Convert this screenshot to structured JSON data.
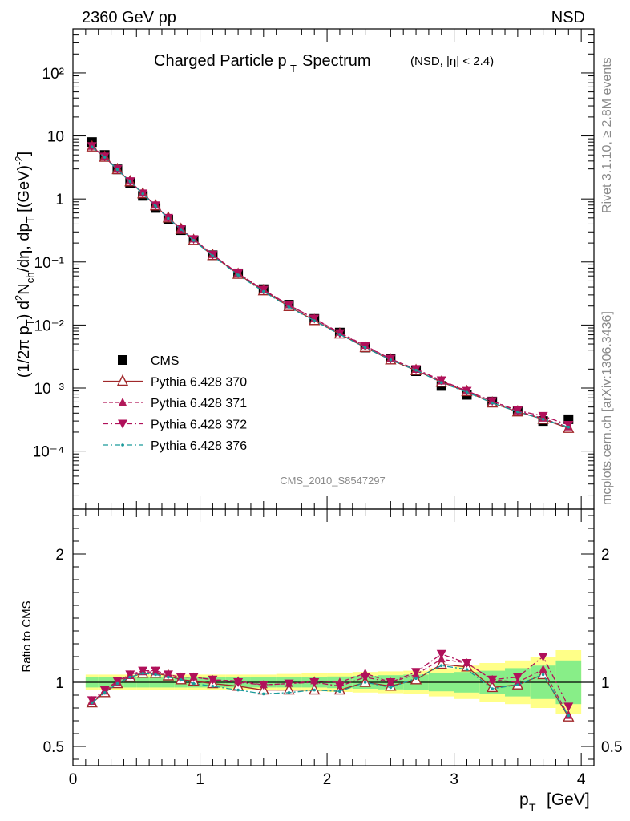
{
  "header": {
    "energy": "2360 GeV pp",
    "process": "NSD"
  },
  "side_text": {
    "rivet": "Rivet 3.1.10, ≥ 2.8M events",
    "source": "mcplots.cern.ch [arXiv:1306.3436]"
  },
  "analysis_id": "CMS_2010_S8547297",
  "chart_data": [
    {
      "type": "scatter",
      "panel": "main",
      "title": "Charged Particle p_T Spectrum (NSD, |η| < 2.4)",
      "xlabel": "p_T [GeV]",
      "ylabel": "(1/2π p_T) d²N_ch/dη, dp_T [(GeV)⁻²]",
      "yscale": "log",
      "xlim": [
        0,
        4.1
      ],
      "ylim": [
        1.2e-05,
        500
      ],
      "y_tick_labels": [
        "10⁻⁴",
        "10⁻³",
        "10⁻²",
        "10⁻¹",
        "1",
        "10",
        "10²"
      ],
      "legend_position": "lower-left",
      "x": [
        0.15,
        0.25,
        0.35,
        0.45,
        0.55,
        0.65,
        0.75,
        0.85,
        0.95,
        1.1,
        1.3,
        1.5,
        1.7,
        1.9,
        2.1,
        2.3,
        2.5,
        2.7,
        2.9,
        3.1,
        3.3,
        3.5,
        3.7,
        3.9
      ],
      "series": [
        {
          "name": "CMS",
          "color": "#000000",
          "marker": "square",
          "values": [
            8.0,
            5.0,
            2.95,
            1.8,
            1.12,
            0.72,
            0.47,
            0.32,
            0.22,
            0.128,
            0.066,
            0.037,
            0.021,
            0.0125,
            0.0076,
            0.0044,
            0.0029,
            0.00185,
            0.00108,
            0.00078,
            0.00061,
            0.00043,
            0.0003,
            0.00032
          ]
        },
        {
          "name": "Pythia 6.428 370",
          "color": "#a0282a",
          "marker": "open-triangle-up",
          "line": "solid",
          "values": [
            6.7,
            4.6,
            2.93,
            1.88,
            1.21,
            0.78,
            0.5,
            0.33,
            0.22,
            0.127,
            0.064,
            0.035,
            0.0197,
            0.0118,
            0.0072,
            0.0044,
            0.0028,
            0.0019,
            0.00124,
            0.00088,
            0.00058,
            0.00042,
            0.00032,
            0.00023
          ]
        },
        {
          "name": "Pythia 6.428 371",
          "color": "#b21a5a",
          "marker": "triangle-up",
          "line": "dashed",
          "values": [
            6.8,
            4.6,
            2.95,
            1.9,
            1.22,
            0.79,
            0.5,
            0.33,
            0.23,
            0.13,
            0.066,
            0.036,
            0.0207,
            0.0126,
            0.0076,
            0.0047,
            0.0029,
            0.00196,
            0.00128,
            0.0009,
            0.00062,
            0.00043,
            0.00033,
            0.00024
          ]
        },
        {
          "name": "Pythia 6.428 372",
          "color": "#b0105a",
          "marker": "triangle-down",
          "line": "dashdot",
          "values": [
            6.9,
            4.7,
            2.97,
            1.91,
            1.22,
            0.79,
            0.5,
            0.33,
            0.23,
            0.13,
            0.066,
            0.036,
            0.0208,
            0.0126,
            0.0074,
            0.0046,
            0.0029,
            0.002,
            0.00132,
            0.0009,
            0.00062,
            0.00044,
            0.00036,
            0.00026
          ]
        },
        {
          "name": "Pythia 6.428 376",
          "color": "#1a9a9a",
          "marker": "dot",
          "line": "dashdot",
          "values": [
            6.7,
            4.6,
            2.93,
            1.88,
            1.21,
            0.77,
            0.49,
            0.33,
            0.22,
            0.125,
            0.062,
            0.034,
            0.0193,
            0.0117,
            0.0071,
            0.0044,
            0.0028,
            0.00192,
            0.00122,
            0.00086,
            0.00058,
            0.00042,
            0.00032,
            0.00024
          ]
        }
      ]
    },
    {
      "type": "line",
      "panel": "ratio",
      "ylabel": "Ratio to CMS",
      "xlabel": "p_T [GeV]",
      "xlim": [
        0,
        4.1
      ],
      "ylim": [
        0.35,
        2.35
      ],
      "y_tick_labels": [
        "0.5",
        "1",
        "2"
      ],
      "x_tick_labels": [
        "0",
        "1",
        "2",
        "3",
        "4"
      ],
      "x": [
        0.15,
        0.25,
        0.35,
        0.45,
        0.55,
        0.65,
        0.75,
        0.85,
        0.95,
        1.1,
        1.3,
        1.5,
        1.7,
        1.9,
        2.1,
        2.3,
        2.5,
        2.7,
        2.9,
        3.1,
        3.3,
        3.5,
        3.7,
        3.9
      ],
      "bands": {
        "edges": [
          0.1,
          0.2,
          0.3,
          0.4,
          0.5,
          0.6,
          0.7,
          0.8,
          0.9,
          1.0,
          1.2,
          1.4,
          1.6,
          1.8,
          2.0,
          2.2,
          2.4,
          2.6,
          2.8,
          3.0,
          3.2,
          3.4,
          3.6,
          3.8,
          4.0
        ],
        "inner": [
          0.04,
          0.04,
          0.04,
          0.04,
          0.04,
          0.04,
          0.04,
          0.04,
          0.04,
          0.04,
          0.04,
          0.04,
          0.04,
          0.04,
          0.045,
          0.05,
          0.055,
          0.06,
          0.07,
          0.08,
          0.09,
          0.11,
          0.13,
          0.17
        ],
        "outer": [
          0.06,
          0.06,
          0.06,
          0.06,
          0.06,
          0.06,
          0.06,
          0.06,
          0.06,
          0.06,
          0.06,
          0.06,
          0.065,
          0.07,
          0.075,
          0.08,
          0.085,
          0.09,
          0.11,
          0.13,
          0.15,
          0.17,
          0.2,
          0.25
        ],
        "inner_color": "#88ee88",
        "outer_color": "#ffff88"
      },
      "series": [
        {
          "name": "Pythia 6.428 370",
          "color": "#a0282a",
          "marker": "open-triangle-up",
          "line": "solid",
          "values": [
            0.84,
            0.92,
            0.99,
            1.04,
            1.07,
            1.07,
            1.05,
            1.02,
            1.01,
            0.99,
            0.97,
            0.94,
            0.94,
            0.94,
            0.94,
            1.0,
            0.97,
            1.02,
            1.14,
            1.12,
            0.96,
            0.98,
            1.06,
            0.73
          ]
        },
        {
          "name": "Pythia 6.428 371",
          "color": "#b21a5a",
          "marker": "triangle-up",
          "line": "dashed",
          "values": [
            0.85,
            0.93,
            1.0,
            1.05,
            1.08,
            1.08,
            1.06,
            1.04,
            1.04,
            1.02,
            1.01,
            0.98,
            0.99,
            1.01,
            1.0,
            1.07,
            1.0,
            1.06,
            1.18,
            1.15,
            1.02,
            1.0,
            1.1,
            0.74
          ]
        },
        {
          "name": "Pythia 6.428 372",
          "color": "#b0105a",
          "marker": "triangle-down",
          "line": "dashdot",
          "values": [
            0.86,
            0.94,
            1.01,
            1.06,
            1.09,
            1.09,
            1.06,
            1.04,
            1.04,
            1.02,
            1.0,
            0.98,
            0.99,
            1.0,
            0.97,
            1.04,
            1.0,
            1.08,
            1.22,
            1.15,
            1.02,
            1.04,
            1.2,
            0.81
          ]
        },
        {
          "name": "Pythia 6.428 376",
          "color": "#1a9a9a",
          "marker": "dot",
          "line": "dashdot",
          "values": [
            0.84,
            0.92,
            0.99,
            1.04,
            1.07,
            1.06,
            1.04,
            1.02,
            0.99,
            0.97,
            0.94,
            0.91,
            0.92,
            0.94,
            0.93,
            1.0,
            0.96,
            1.03,
            1.13,
            1.1,
            0.95,
            0.98,
            1.06,
            0.74
          ]
        }
      ]
    }
  ]
}
